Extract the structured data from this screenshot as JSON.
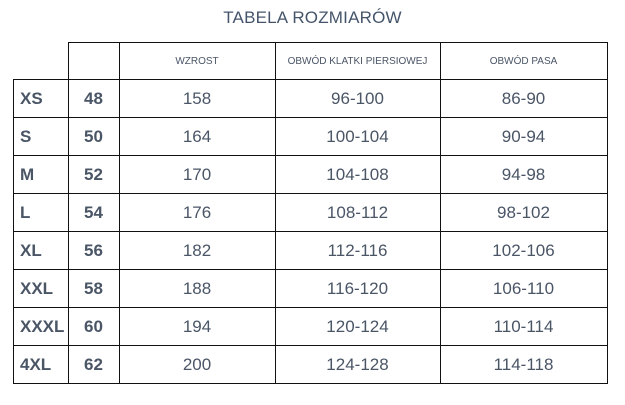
{
  "title": "TABELA ROZMIARÓW",
  "headers": [
    "",
    "",
    "WZROST",
    "OBWÓD KLATKI PIERSIOWEJ",
    "OBWÓD PASA"
  ],
  "rows": [
    [
      "XS",
      "48",
      "158",
      "96-100",
      "86-90"
    ],
    [
      "S",
      "50",
      "164",
      "100-104",
      "90-94"
    ],
    [
      "M",
      "52",
      "170",
      "104-108",
      "94-98"
    ],
    [
      "L",
      "54",
      "176",
      "108-112",
      "98-102"
    ],
    [
      "XL",
      "56",
      "182",
      "112-116",
      "102-106"
    ],
    [
      "XXL",
      "58",
      "188",
      "116-120",
      "106-110"
    ],
    [
      "XXXL",
      "60",
      "194",
      "120-124",
      "110-114"
    ],
    [
      "4XL",
      "62",
      "200",
      "124-128",
      "114-118"
    ]
  ]
}
